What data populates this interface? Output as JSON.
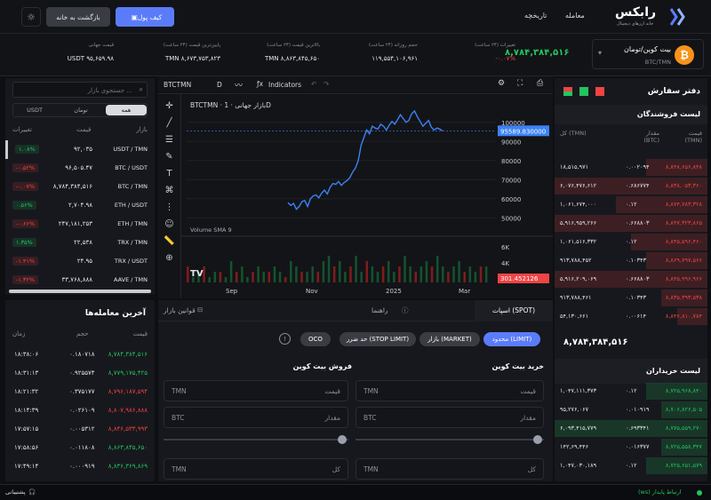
{
  "header": {
    "brand": "رابکس",
    "brand_sub": "خانه ارزهای دیجیتال",
    "nav": [
      "معامله",
      "تاریخچه"
    ],
    "wallet": "کیف پول",
    "home": "بازگشت به خانه"
  },
  "ticker": {
    "pair": "بیت کوین/تومان",
    "pair_code": "BTC/TMN",
    "price": "۸,۷۸۴,۳۸۴,۵۱۶",
    "stats": [
      {
        "label": "تغییرات (۲۴ ساعت)",
        "value": "-۰.۰۷%"
      },
      {
        "label": "حجم روزانه (۲۴ ساعت)",
        "value": "۱۱۹,۵۵۴,۱۰۶,۹۶۱"
      },
      {
        "label": "بالاترین قیمت (۲۴ ساعت)",
        "value": "TMN ۸,۸۶۳,۸۴۵,۶۵۰"
      },
      {
        "label": "پایین‌ترین قیمت (۲۴ ساعت)",
        "value": "TMN ۸,۶۷۳,۷۵۳,۸۲۳"
      },
      {
        "label": "قیمت جهانی",
        "value": "USDT ۹۵,۶۵۹.۹۸"
      }
    ]
  },
  "market": {
    "search_placeholder": "جستجوی بازار ...",
    "tabs": [
      "همه",
      "تومان",
      "USDT"
    ],
    "cols": [
      "بازار",
      "قیمت",
      "تغییرات"
    ],
    "rows": [
      {
        "pair": "USDT / TMN",
        "price": "۹۲,۰۳۵",
        "change": "۱.۰۸%",
        "up": true
      },
      {
        "pair": "BTC / USDT",
        "price": "۹۶,۵۰۵.۴۷",
        "change": "-۰.۵۲%",
        "up": false
      },
      {
        "pair": "BTC / TMN",
        "price": "۸,۷۸۴,۳۸۴,۵۱۶",
        "change": "-۰.۰۷%",
        "up": false
      },
      {
        "pair": "ETH / USDT",
        "price": "۲,۷۰۴.۹۸",
        "change": "۰.۵۶%",
        "up": true
      },
      {
        "pair": "ETH / TMN",
        "price": "۲۴۷,۱۸۱,۲۵۳",
        "change": "-۰.۶۶%",
        "up": false
      },
      {
        "pair": "TRX / TMN",
        "price": "۲۲,۵۳۸",
        "change": "۱.۳۵%",
        "up": true
      },
      {
        "pair": "TRX / USDT",
        "price": "۲۴.۹۵",
        "change": "-۱.۴۱%",
        "up": false
      },
      {
        "pair": "AAVE / TMN",
        "price": "۳۳,۷۶۸,۸۸۸",
        "change": "-۱.۳۲%",
        "up": false
      }
    ]
  },
  "trades": {
    "title": "آخرین معامله‌ها",
    "cols": [
      "قیمت",
      "حجم",
      "زمان"
    ],
    "rows": [
      {
        "price": "۸,۷۸۴,۳۸۴,۵۱۶",
        "vol": "۰.۱۸۰۷۱۸",
        "time": "۱۸:۳۸:۰۶",
        "up": true
      },
      {
        "price": "۸,۷۷۹,۱۷۵,۴۲۵",
        "vol": "۰.۹۲۵۵۷۴",
        "time": "۱۸:۳۱:۱۳",
        "up": true
      },
      {
        "price": "۸,۷۹۶,۱۸۷,۵۹۴",
        "vol": "۰.۳۷۵۱۷۷",
        "time": "۱۸:۲۱:۳۲",
        "up": false
      },
      {
        "price": "۸,۸۰۷,۹۸۶,۸۸۸",
        "vol": "۰.۰۲۶۱۰۹",
        "time": "۱۸:۱۴:۳۹",
        "up": false
      },
      {
        "price": "۸,۸۴۶,۵۳۳,۹۹۳",
        "vol": "۰.۰۰۵۳۱۲",
        "time": "۱۷:۵۷:۱۵",
        "up": false
      },
      {
        "price": "۸,۸۶۳,۸۴۵,۶۵۰",
        "vol": "۰.۰۱۱۸۰۸",
        "time": "۱۷:۵۸:۵۶",
        "up": true
      },
      {
        "price": "۸,۸۳۶,۳۶۹,۸۶۹",
        "vol": "۰.۰۰۰۹۱۹",
        "time": "۱۷:۴۹:۱۴",
        "up": true
      }
    ]
  },
  "chart": {
    "symbol": "BTCTMN",
    "interval": "D",
    "indicators": "Indicators",
    "legend": "BTCTMN · بازار جهانی · 1D",
    "volume_label": "Volume SMA 9",
    "last_price": "95589.830000",
    "last_volume": "301.452126"
  },
  "chart_data": {
    "type": "line",
    "title": "BTCTMN",
    "x_ticks": [
      "Sep",
      "Nov",
      "2025",
      "Mar"
    ],
    "y_ticks": [
      100000,
      90000,
      80000,
      70000,
      60000,
      50000
    ],
    "ylim": [
      45000,
      112000
    ],
    "series": [
      {
        "values": [
          58000,
          56500,
          57500,
          54500,
          56000,
          58500,
          59000,
          56000,
          60000,
          61500,
          62000,
          60500,
          63000,
          64500,
          62500,
          66000,
          68000,
          67500,
          69000,
          67000,
          68500,
          69500,
          71000,
          74000,
          76000,
          80000,
          88000,
          92000,
          96000,
          94000,
          98000,
          97000,
          96500,
          99000,
          98000,
          96000,
          98500,
          100500,
          99000,
          101500,
          104000,
          102000,
          100000,
          101000,
          104500,
          106000,
          103000,
          100500,
          98000,
          99500,
          101000,
          97500,
          96000,
          97000,
          96500,
          95589.83
        ]
      }
    ],
    "volume_ticks": [
      "6K",
      "4K",
      "2K"
    ],
    "volume_values": [
      3,
      1,
      2,
      3,
      1,
      2,
      2,
      1,
      4,
      2,
      3,
      1,
      2,
      3,
      2,
      2,
      3,
      2,
      1,
      4,
      3,
      2,
      2,
      3,
      2,
      4,
      5,
      3,
      4,
      2,
      3,
      5,
      2,
      4,
      3,
      2,
      3,
      4,
      2,
      3,
      5,
      3,
      2,
      3,
      4,
      3,
      5,
      3,
      2,
      3,
      4,
      2,
      3,
      2,
      3,
      3
    ]
  },
  "tradepanel": {
    "tabs": [
      "اسپات (SPOT)",
      "راهنما",
      "قوانین بازار"
    ],
    "order_types": [
      "محدود (LIMIT)",
      "بازار (MARKET)",
      "حد ضرر (STOP LIMIT)",
      "OCO"
    ],
    "buy_title": "خرید بیت کوین",
    "sell_title": "فروش بیت کوین",
    "price_label": "قیمت",
    "amount_label": "مقدار",
    "total_label": "کل",
    "tmn": "TMN",
    "btc": "BTC"
  },
  "orderbook": {
    "title": "دفتر سفارش",
    "sellers_title": "لیست فروشندگان",
    "buyers_title": "لیست خریداران",
    "cols": [
      "قیمت (TMN)",
      "مقدار (BTC)",
      "کل (TMN)"
    ],
    "sells": [
      {
        "price": "۸,۸۴۸,۶۵۶,۸۴۸",
        "amount": "۰.۰۰۲۰۹۴",
        "total": "۱۸,۵۱۵,۹۷۱"
      },
      {
        "price": "۸,۸۳۸,۰۵۳,۳۶۰",
        "amount": "۰.۶۸۶۷۷۴",
        "total": "۶,۰۷۶,۴۷۶,۶۱۲"
      },
      {
        "price": "۸,۸۷۴,۷۸۳,۳۲۸",
        "amount": "۰.۱۲",
        "total": "۱,۰۶۱,۶۷۴,۰۰۰"
      },
      {
        "price": "۸,۸۴۷,۳۲۳,۸۶۵",
        "amount": "۰.۶۶۸۸۰۳",
        "total": "۵,۹۱۶,۹۵۹,۲۶۶"
      },
      {
        "price": "۸,۸۴۵,۵۹۶,۴۶۰",
        "amount": "۰.۱۲",
        "total": "۱,۰۶۱,۵۱۶,۳۳۲"
      },
      {
        "price": "۸,۸۶۹,۷۹۷,۵۶۶",
        "amount": "۰.۱۰۳۴۳",
        "total": "۹۱۳,۷۸۸,۴۵۲"
      },
      {
        "price": "۸,۸۴۵,۹۹۶,۹۶۶",
        "amount": "۰.۶۶۸۸۰۳",
        "total": "۵,۹۱۶,۲۰۹,۰۶۹"
      },
      {
        "price": "۸,۸۳۵,۳۹۳,۵۳۸",
        "amount": "۰.۱۰۳۴۳",
        "total": "۹۱۳,۷۸۸,۴۶۱"
      },
      {
        "price": "۸,۸۴۶,۸۱۰,۷۸۴",
        "amount": "۰.۰۰۶۱۴",
        "total": "۵۴,۱۳۰,۶۶۱"
      }
    ],
    "mid_price": "۸,۷۸۴,۳۸۴,۵۱۶",
    "buys": [
      {
        "price": "۸,۷۲۵,۹۶۸,۸۴۰",
        "amount": "۰.۱۲",
        "total": "۱,۰۴۷,۱۱۱,۳۷۳"
      },
      {
        "price": "۸,۷۰۶,۸۲۶,۵۰۵",
        "amount": "۰.۰۱۰۹۱۹",
        "total": "۹۵,۲۷۶,۰۶۷"
      },
      {
        "price": "۸,۷۷۵,۵۵۹,۲۷۰",
        "amount": "۰.۶۹۳۳۴۱",
        "total": "۶,۰۹۳,۴۱۵,۷۷۹"
      },
      {
        "price": "۸,۷۲۵,۵۵۸,۳۴۷",
        "amount": "۰.۰۱۶۳۷۷",
        "total": "۱۴۲,۶۹,۴۴۶"
      },
      {
        "price": "۸,۷۲۵,۶۵۱,۵۷۹",
        "amount": "۰.۱۲",
        "total": "۱,۰۴۷,۰۳۰,۱۸۹"
      }
    ]
  },
  "footer": {
    "support": "پشتیبانی",
    "connection": "(ws) ارتباط پایدار"
  },
  "colors": {
    "accent": "#5b7cfa",
    "green": "#22c55e",
    "red": "#ef4444"
  }
}
